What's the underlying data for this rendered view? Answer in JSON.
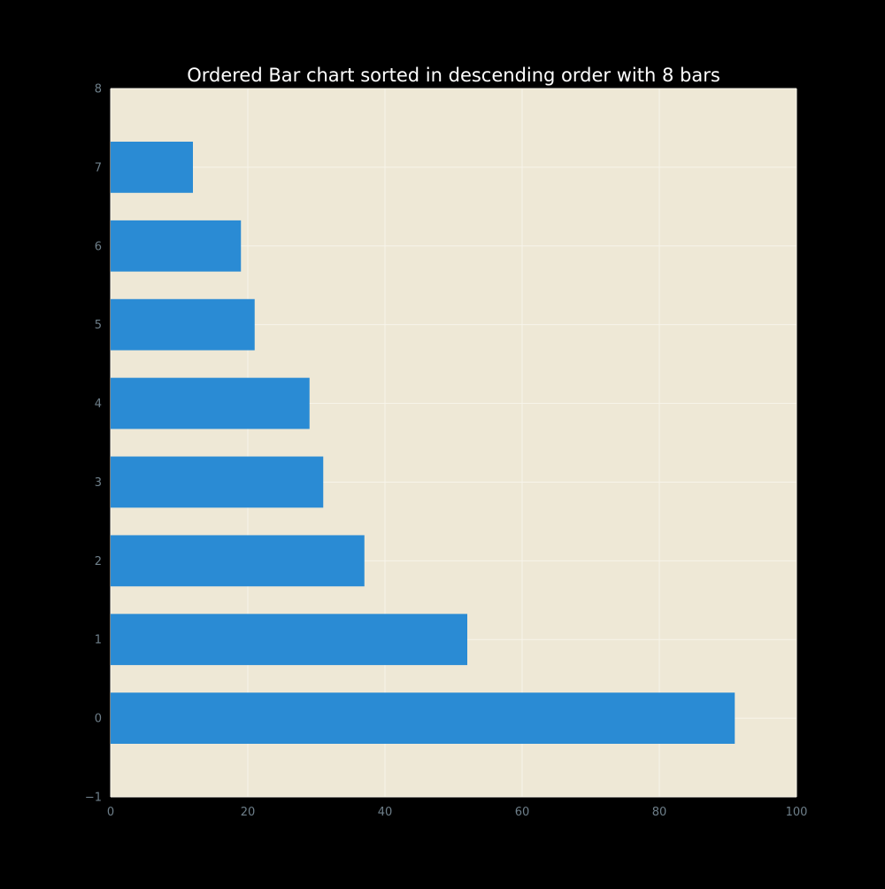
{
  "chart_data": {
    "type": "bar",
    "orientation": "horizontal",
    "title": "Ordered Bar chart sorted in descending order with 8 bars",
    "xlabel": "",
    "ylabel": "",
    "categories": [
      0,
      1,
      2,
      3,
      4,
      5,
      6,
      7
    ],
    "values": [
      91,
      52,
      37,
      31,
      29,
      21,
      19,
      12
    ],
    "xlim": [
      0,
      100
    ],
    "ylim": [
      -1,
      8
    ],
    "xticks": [
      0,
      20,
      40,
      60,
      80,
      100
    ],
    "yticks": [
      -1,
      0,
      1,
      2,
      3,
      4,
      5,
      6,
      7,
      8
    ],
    "ytick_labels": [
      "−1",
      "0",
      "1",
      "2",
      "3",
      "4",
      "5",
      "6",
      "7",
      "8"
    ],
    "grid": true,
    "legend": "none",
    "colors": {
      "bar": "#2a8bd4",
      "plot_background": "#eee8d6",
      "figure_background": "#000000",
      "grid": "#f7f4ea",
      "tick_label": "#6e7f8a",
      "title": "#ffffff"
    }
  }
}
